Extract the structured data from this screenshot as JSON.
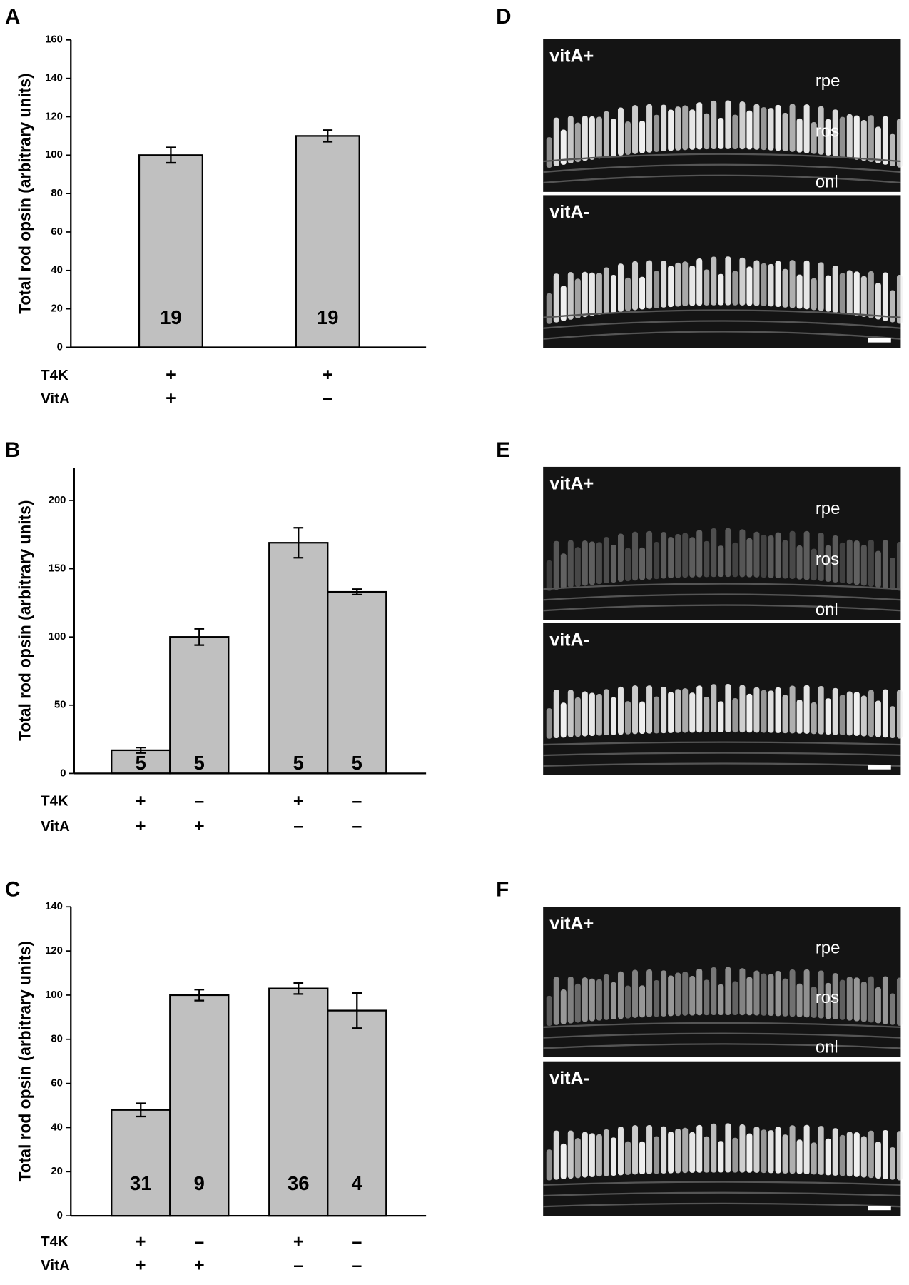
{
  "chart_data": [
    {
      "panel": "A",
      "type": "bar",
      "ylabel": "Total rod opsin (arbitrary units)",
      "ylim": [
        0,
        160
      ],
      "yticks": [
        0,
        20,
        40,
        60,
        80,
        100,
        120,
        140,
        160
      ],
      "values": [
        100,
        110
      ],
      "errors": [
        4,
        3
      ],
      "n_labels": [
        "19",
        "19"
      ],
      "color": "#c0c0c0",
      "conditions": [
        {
          "name": "T4K",
          "signs": [
            "+",
            "+"
          ]
        },
        {
          "name": "VitA",
          "signs": [
            "+",
            "–"
          ]
        }
      ]
    },
    {
      "panel": "B",
      "type": "bar",
      "ylabel": "Total rod opsin (arbitrary units)",
      "ylim": [
        0,
        224
      ],
      "yticks": [
        0,
        50,
        100,
        150,
        200
      ],
      "values": [
        17,
        100,
        169,
        133
      ],
      "errors": [
        2,
        6,
        11,
        2
      ],
      "n_labels": [
        "5",
        "5",
        "5",
        "5"
      ],
      "color": "#c0c0c0",
      "conditions": [
        {
          "name": "T4K",
          "signs": [
            "+",
            "–",
            "+",
            "–"
          ]
        },
        {
          "name": "VitA",
          "signs": [
            "+",
            "+",
            "–",
            "–"
          ]
        }
      ]
    },
    {
      "panel": "C",
      "type": "bar",
      "ylabel": "Total rod opsin (arbitrary units)",
      "ylim": [
        0,
        140
      ],
      "yticks": [
        0,
        20,
        40,
        60,
        80,
        100,
        120,
        140
      ],
      "values": [
        48,
        100,
        103,
        93
      ],
      "errors": [
        3,
        2.5,
        2.5,
        8
      ],
      "n_labels": [
        "31",
        "9",
        "36",
        "4"
      ],
      "color": "#c0c0c0",
      "conditions": [
        {
          "name": "T4K",
          "signs": [
            "+",
            "–",
            "+",
            "–"
          ]
        },
        {
          "name": "VitA",
          "signs": [
            "+",
            "+",
            "–",
            "–"
          ]
        }
      ]
    }
  ],
  "micrographs": [
    {
      "panel": "D",
      "images": [
        {
          "label": "vitA+",
          "layers": [
            "rpe",
            "ros",
            "onl"
          ]
        },
        {
          "label": "vitA-"
        }
      ]
    },
    {
      "panel": "E",
      "images": [
        {
          "label": "vitA+",
          "layers": [
            "rpe",
            "ros",
            "onl"
          ]
        },
        {
          "label": "vitA-"
        }
      ]
    },
    {
      "panel": "F",
      "images": [
        {
          "label": "vitA+",
          "layers": [
            "rpe",
            "ros",
            "onl"
          ]
        },
        {
          "label": "vitA-"
        }
      ]
    }
  ]
}
